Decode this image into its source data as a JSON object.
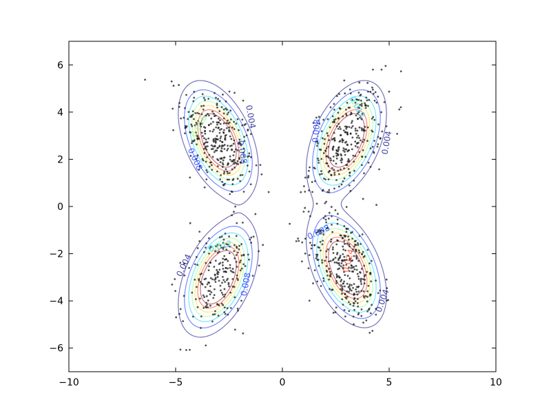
{
  "chart_data": {
    "type": "contour",
    "title": "",
    "xlabel": "",
    "ylabel": "",
    "xlim": [
      -10,
      10
    ],
    "ylim": [
      -7,
      7
    ],
    "x_ticks": [
      -10,
      -5,
      0,
      5,
      10
    ],
    "y_ticks": [
      -6,
      -4,
      -2,
      0,
      2,
      4,
      6
    ],
    "x_tick_labels": [
      "−10",
      "−5",
      "0",
      "5",
      "10"
    ],
    "y_tick_labels": [
      "−6",
      "−4",
      "−2",
      "0",
      "2",
      "4",
      "6"
    ],
    "grid": false,
    "legend": "none",
    "contour_levels": [
      0.004,
      0.008,
      0.012,
      0.016,
      0.02,
      0.024,
      0.028
    ],
    "colormap": "jet",
    "contour_alpha": 0.55,
    "components": [
      {
        "cx": -3.0,
        "cy": 2.8,
        "sx": 0.85,
        "sy": 1.15,
        "rho": -0.45,
        "n": 320
      },
      {
        "cx": 3.0,
        "cy": 2.8,
        "sx": 0.85,
        "sy": 1.15,
        "rho": 0.45,
        "n": 320
      },
      {
        "cx": -3.0,
        "cy": -3.0,
        "sx": 0.85,
        "sy": 1.15,
        "rho": 0.45,
        "n": 220
      },
      {
        "cx": 3.0,
        "cy": -2.6,
        "sx": 0.85,
        "sy": 1.15,
        "rho": -0.45,
        "n": 320
      }
    ],
    "contour_labels": [
      {
        "text": "0.004",
        "x": -1.5,
        "y": 3.8,
        "angle": 80
      },
      {
        "text": "0.008",
        "x": -1.9,
        "y": 2.3,
        "angle": 80
      },
      {
        "text": "0.008",
        "x": -4.1,
        "y": 2.0,
        "angle": 65
      },
      {
        "text": "0.016",
        "x": -3.9,
        "y": 3.4,
        "angle": -60
      },
      {
        "text": "0.012",
        "x": 3.5,
        "y": 4.2,
        "angle": 60
      },
      {
        "text": "0.008",
        "x": 1.6,
        "y": 3.2,
        "angle": -85
      },
      {
        "text": "0.004",
        "x": 4.9,
        "y": 2.7,
        "angle": -80
      },
      {
        "text": "0.004",
        "x": -4.6,
        "y": -2.5,
        "angle": -65
      },
      {
        "text": "0.012",
        "x": -2.9,
        "y": -1.7,
        "angle": -15
      },
      {
        "text": "0.008",
        "x": -1.7,
        "y": -3.3,
        "angle": -80
      },
      {
        "text": "0.008",
        "x": 1.7,
        "y": -1.1,
        "angle": -25
      },
      {
        "text": "0.024",
        "x": 3.1,
        "y": -2.3,
        "angle": -75
      },
      {
        "text": "0.004",
        "x": 4.7,
        "y": -4.0,
        "angle": -70
      }
    ],
    "scatter_color": "#1a1a1a",
    "scatter_alpha": 0.75
  }
}
